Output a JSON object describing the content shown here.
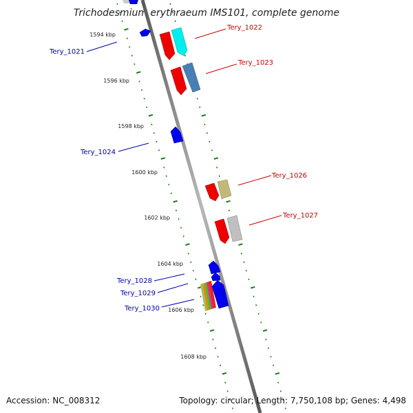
{
  "title": "Trichodesmium erythraeum IMS101, complete genome",
  "footer": {
    "accession": "Accession: NC_008312",
    "summary": "Topology: circular; Length: 7,750,108 bp; Genes: 4,498"
  },
  "colors": {
    "forward_label": "#cc0000",
    "reverse_label": "#0000aa",
    "tick": "#1a7a1a",
    "backbone": "#808080"
  },
  "ticks": [
    "1594 kbp",
    "1596 kbp",
    "1598 kbp",
    "1600 kbp",
    "1602 kbp",
    "1604 kbp",
    "1606 kbp",
    "1608 kbp"
  ],
  "genes": {
    "forward": [
      "Tery_1022",
      "Tery_1023",
      "Tery_1026",
      "Tery_1027"
    ],
    "reverse": [
      "Tery_1021",
      "Tery_1024",
      "Tery_1028",
      "Tery_1029",
      "Tery_1030"
    ]
  }
}
